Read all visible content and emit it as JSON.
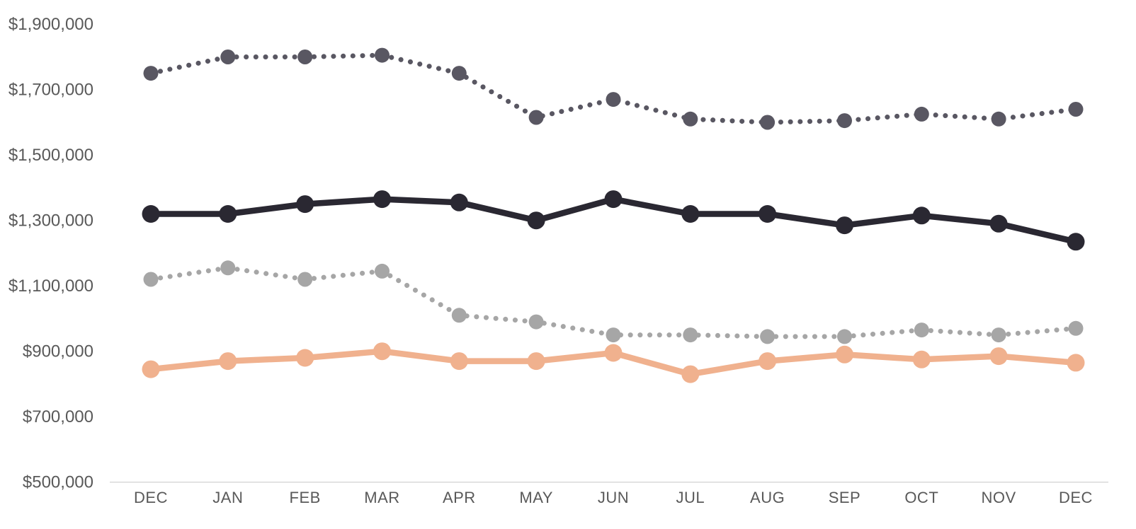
{
  "chart_data": {
    "type": "line",
    "title": "",
    "xlabel": "",
    "ylabel": "",
    "grid": "off",
    "legend": "none",
    "categories": [
      "DEC",
      "JAN",
      "FEB",
      "MAR",
      "APR",
      "MAY",
      "JUN",
      "JUL",
      "AUG",
      "SEP",
      "OCT",
      "NOV",
      "DEC"
    ],
    "y_axis": {
      "min": 500000,
      "max": 1900000,
      "step": 200000,
      "tick_labels": [
        "$1,900,000",
        "$1,700,000",
        "$1,500,000",
        "$1,300,000",
        "$1,100,000",
        "$900,000",
        "$700,000",
        "$500,000"
      ],
      "tick_label_format": "$#,##0"
    },
    "series": [
      {
        "name": "dark-dotted-line",
        "style": "dotted",
        "color": "#595762",
        "values": [
          1750000,
          1800000,
          1800000,
          1805000,
          1750000,
          1615000,
          1670000,
          1610000,
          1600000,
          1605000,
          1625000,
          1610000,
          1640000
        ]
      },
      {
        "name": "black-solid-line",
        "style": "solid",
        "color": "#2A2832",
        "values": [
          1320000,
          1320000,
          1350000,
          1365000,
          1355000,
          1300000,
          1365000,
          1320000,
          1320000,
          1285000,
          1315000,
          1290000,
          1235000
        ]
      },
      {
        "name": "gray-dotted-line",
        "style": "dotted",
        "color": "#A6A6A6",
        "values": [
          1120000,
          1155000,
          1120000,
          1145000,
          1010000,
          990000,
          950000,
          950000,
          945000,
          945000,
          965000,
          950000,
          970000
        ]
      },
      {
        "name": "peach-solid-line",
        "style": "solid",
        "color": "#F0B18E",
        "values": [
          845000,
          870000,
          880000,
          900000,
          870000,
          870000,
          895000,
          830000,
          870000,
          890000,
          875000,
          885000,
          865000
        ]
      }
    ],
    "colors": {
      "axis_text": "#595959",
      "axis_line": "#D9D9D9",
      "background": "#FFFFFF"
    }
  }
}
